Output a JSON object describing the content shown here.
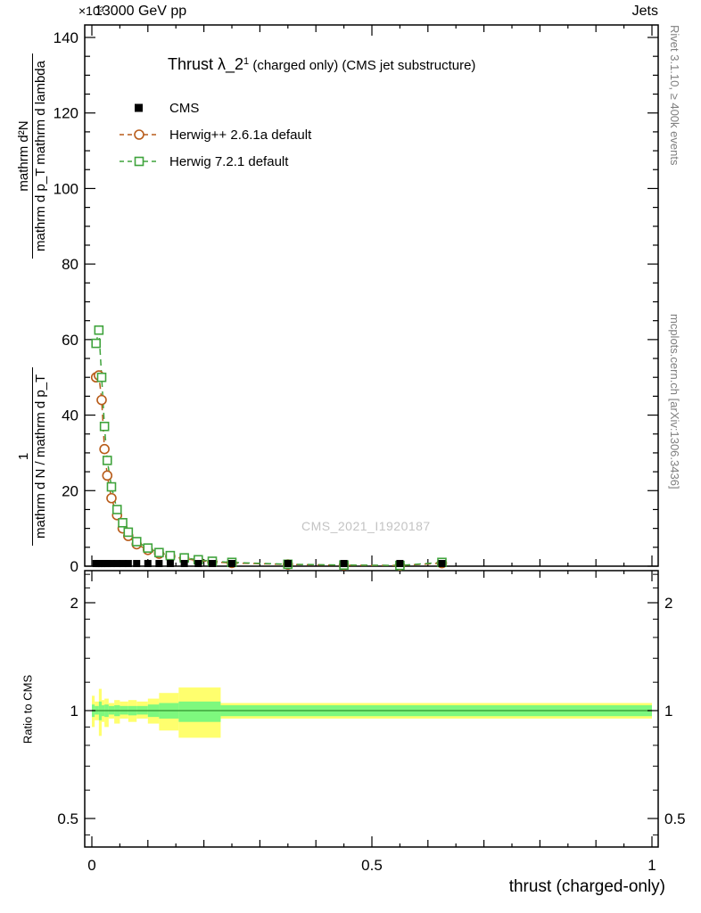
{
  "header": {
    "exponent": "×10³",
    "beam": "13000 GeV pp",
    "tag": "Jets"
  },
  "title": {
    "pre": "Thrust λ_2",
    "sup": "1",
    "post": " (charged only) (CMS jet substructure)"
  },
  "legend": [
    {
      "label": "CMS",
      "marker": "filled-square",
      "color": "#000000"
    },
    {
      "label": "Herwig++ 2.6.1a default",
      "marker": "open-circle",
      "color": "#b85c1a"
    },
    {
      "label": "Herwig 7.2.1 default",
      "marker": "open-square",
      "color": "#3fa33c"
    }
  ],
  "watermark": "CMS_2021_I1920187",
  "side_notes": {
    "right_top": "Rivet 3.1.10, ≥ 400k events",
    "right_bottom": "mcplots.cern.ch [arXiv:1306.3436]"
  },
  "axis_labels": {
    "y_num1": "1",
    "y_den1": "mathrm d N / mathrm d p_T",
    "y_num2": "mathrm d²N",
    "y_den2": "mathrm d p_T mathrm d lambda",
    "ratio": "Ratio to CMS",
    "x": "thrust (charged-only)"
  },
  "chart_data": [
    {
      "type": "scatter",
      "title": "Thrust λ_2¹ (charged only) (CMS jet substructure)",
      "xlabel": "thrust (charged-only)",
      "ylabel": "1/(mathrm d N/mathrm d p_T) · mathrm d²N/(mathrm d p_T mathrm d lambda)",
      "y_exponent": "×10³",
      "xlim": [
        0,
        1
      ],
      "ylim": [
        0,
        145
      ],
      "xticks": [
        0,
        0.5,
        1
      ],
      "yticks": [
        0,
        20,
        40,
        60,
        80,
        100,
        120,
        140
      ],
      "x": [
        0.0075,
        0.0125,
        0.0175,
        0.0225,
        0.0275,
        0.035,
        0.045,
        0.055,
        0.065,
        0.08,
        0.1,
        0.12,
        0.14,
        0.165,
        0.19,
        0.215,
        0.25,
        0.35,
        0.45,
        0.55,
        0.625
      ],
      "series": [
        {
          "name": "CMS",
          "marker": "filled-square",
          "color": "#000000",
          "dash": false,
          "y": [
            0.7,
            0.7,
            0.7,
            0.7,
            0.7,
            0.7,
            0.7,
            0.7,
            0.7,
            0.7,
            0.7,
            0.7,
            0.7,
            0.7,
            0.7,
            0.7,
            0.7,
            0.7,
            0.7,
            0.7,
            0.7
          ]
        },
        {
          "name": "Herwig++ 2.6.1a default",
          "marker": "open-circle",
          "color": "#b85c1a",
          "dash": true,
          "y": [
            50,
            50.5,
            44,
            31,
            24,
            18,
            13.5,
            10,
            8,
            5.8,
            4.3,
            3.3,
            2.6,
            2.0,
            1.5,
            1.15,
            0.85,
            0.45,
            0.25,
            0.17,
            0.8
          ]
        },
        {
          "name": "Herwig 7.2.1 default",
          "marker": "open-square",
          "color": "#3fa33c",
          "dash": true,
          "y": [
            59,
            62.5,
            50,
            37,
            28,
            21,
            15,
            11.5,
            9,
            6.5,
            4.8,
            3.6,
            2.8,
            2.2,
            1.7,
            1.3,
            1.0,
            0.5,
            0.3,
            0.2,
            1.0
          ]
        }
      ]
    },
    {
      "type": "ratio",
      "ylabel": "Ratio to CMS",
      "yscale": "log2",
      "yticks": [
        0.5,
        1,
        2
      ],
      "ylim": [
        0.42,
        2.45
      ],
      "band_colors": {
        "outer": "#ffff6e",
        "inner": "#7ef87e"
      },
      "reference_line": 1,
      "segments": [
        {
          "x0": 0.0,
          "x1": 0.005,
          "outer": [
            0.9,
            1.1
          ],
          "inner": [
            0.96,
            1.04
          ]
        },
        {
          "x0": 0.005,
          "x1": 0.0125,
          "outer": [
            0.94,
            1.06
          ],
          "inner": [
            0.975,
            1.03
          ]
        },
        {
          "x0": 0.0125,
          "x1": 0.0175,
          "outer": [
            0.85,
            1.15
          ],
          "inner": [
            0.94,
            1.06
          ]
        },
        {
          "x0": 0.0175,
          "x1": 0.0225,
          "outer": [
            0.93,
            1.07
          ],
          "inner": [
            0.965,
            1.035
          ]
        },
        {
          "x0": 0.0225,
          "x1": 0.03,
          "outer": [
            0.9,
            1.08
          ],
          "inner": [
            0.96,
            1.04
          ]
        },
        {
          "x0": 0.03,
          "x1": 0.04,
          "outer": [
            0.95,
            1.05
          ],
          "inner": [
            0.975,
            1.03
          ]
        },
        {
          "x0": 0.04,
          "x1": 0.05,
          "outer": [
            0.92,
            1.07
          ],
          "inner": [
            0.965,
            1.035
          ]
        },
        {
          "x0": 0.05,
          "x1": 0.065,
          "outer": [
            0.95,
            1.06
          ],
          "inner": [
            0.975,
            1.03
          ]
        },
        {
          "x0": 0.065,
          "x1": 0.08,
          "outer": [
            0.93,
            1.07
          ],
          "inner": [
            0.97,
            1.03
          ]
        },
        {
          "x0": 0.08,
          "x1": 0.1,
          "outer": [
            0.95,
            1.06
          ],
          "inner": [
            0.975,
            1.03
          ]
        },
        {
          "x0": 0.1,
          "x1": 0.12,
          "outer": [
            0.92,
            1.08
          ],
          "inner": [
            0.96,
            1.04
          ]
        },
        {
          "x0": 0.12,
          "x1": 0.155,
          "outer": [
            0.88,
            1.12
          ],
          "inner": [
            0.95,
            1.05
          ]
        },
        {
          "x0": 0.155,
          "x1": 0.23,
          "outer": [
            0.84,
            1.16
          ],
          "inner": [
            0.93,
            1.06
          ]
        },
        {
          "x0": 0.23,
          "x1": 1.0,
          "outer": [
            0.95,
            1.05
          ],
          "inner": [
            0.965,
            1.035
          ]
        }
      ]
    }
  ]
}
